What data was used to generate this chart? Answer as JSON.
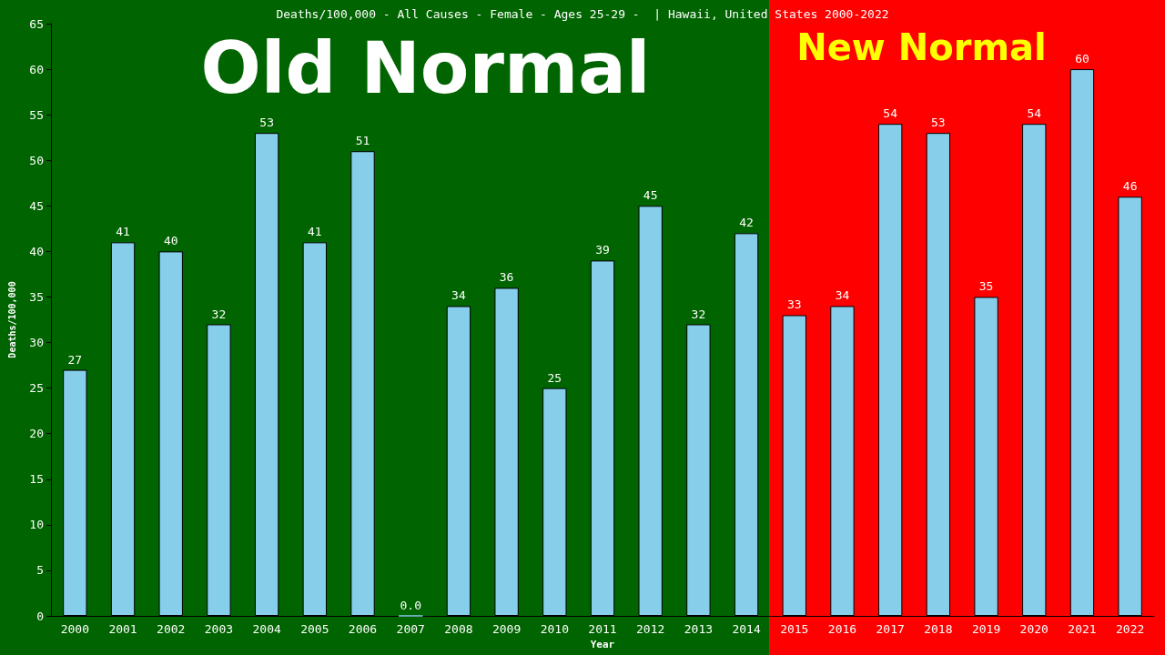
{
  "chart_data": {
    "type": "bar",
    "title": "Deaths/100,000 - All Causes - Female - Ages 25-29 -  | Hawaii, United States 2000-2022",
    "xlabel": "Year",
    "ylabel": "Deaths/100,000",
    "categories": [
      "2000",
      "2001",
      "2002",
      "2003",
      "2004",
      "2005",
      "2006",
      "2007",
      "2008",
      "2009",
      "2010",
      "2011",
      "2012",
      "2013",
      "2014",
      "2015",
      "2016",
      "2017",
      "2018",
      "2019",
      "2020",
      "2021",
      "2022"
    ],
    "values": [
      27,
      41,
      40,
      32,
      53,
      41,
      51,
      0,
      34,
      36,
      25,
      39,
      45,
      32,
      42,
      33,
      34,
      54,
      53,
      35,
      54,
      60,
      46
    ],
    "value_labels": [
      "27",
      "41",
      "40",
      "32",
      "53",
      "41",
      "51",
      "0.0",
      "34",
      "36",
      "25",
      "39",
      "45",
      "32",
      "42",
      "33",
      "34",
      "54",
      "53",
      "35",
      "54",
      "60",
      "46"
    ],
    "color": "#87ceeb",
    "ylim": [
      0,
      65
    ],
    "yticks": [
      0,
      5,
      10,
      15,
      20,
      25,
      30,
      35,
      40,
      45,
      50,
      55,
      60,
      65
    ],
    "grid": false,
    "bands": [
      {
        "axis": "x",
        "from": "2000",
        "to": "2014",
        "label": "Old Normal",
        "color": "#006400"
      },
      {
        "axis": "x",
        "from": "2015",
        "to": "2022",
        "label": "New Normal",
        "color": "#ff0000"
      }
    ]
  }
}
